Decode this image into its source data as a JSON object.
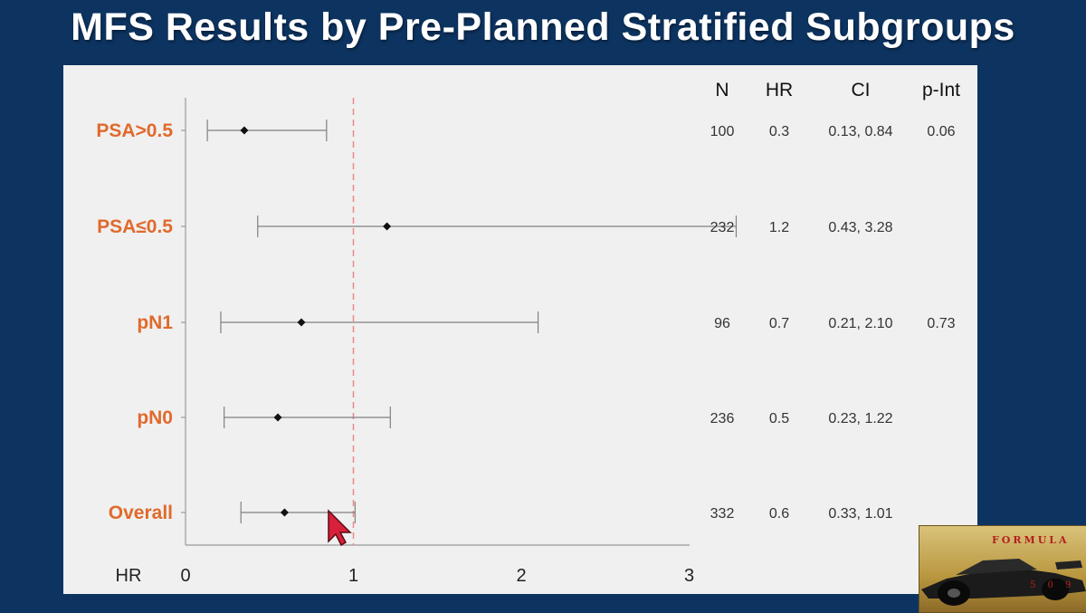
{
  "slide": {
    "title": "MFS Results by Pre-Planned Stratified Subgroups"
  },
  "table": {
    "headers": [
      "N",
      "HR",
      "CI",
      "p-Int"
    ]
  },
  "chart_data": {
    "type": "forest",
    "xlabel": "HR",
    "xlim": [
      0,
      3.45
    ],
    "xticks": [
      0,
      1,
      2,
      3
    ],
    "reference_line": 1,
    "rows": [
      {
        "label": "PSA>0.5",
        "n": "100",
        "hr": 0.3,
        "hr_text": "0.3",
        "ci_low": 0.13,
        "ci_high": 0.84,
        "ci_text": "0.13, 0.84",
        "p_int": "0.06",
        "point": 0.35
      },
      {
        "label": "PSA≤0.5",
        "n": "232",
        "hr": 1.2,
        "hr_text": "1.2",
        "ci_low": 0.43,
        "ci_high": 3.28,
        "ci_text": "0.43, 3.28",
        "p_int": "",
        "point": 1.2
      },
      {
        "label": "pN1",
        "n": "96",
        "hr": 0.7,
        "hr_text": "0.7",
        "ci_low": 0.21,
        "ci_high": 2.1,
        "ci_text": "0.21, 2.10",
        "p_int": "0.73",
        "point": 0.69
      },
      {
        "label": "pN0",
        "n": "236",
        "hr": 0.5,
        "hr_text": "0.5",
        "ci_low": 0.23,
        "ci_high": 1.22,
        "ci_text": "0.23, 1.22",
        "p_int": "",
        "point": 0.55
      },
      {
        "label": "Overall",
        "n": "332",
        "hr": 0.6,
        "hr_text": "0.6",
        "ci_low": 0.33,
        "ci_high": 1.01,
        "ci_text": "0.33, 1.01",
        "p_int": "",
        "point": 0.59
      }
    ],
    "colors": {
      "label": "#e06a2c",
      "reference": "#e88a8a",
      "whisker": "#808080",
      "point": "#111111"
    }
  },
  "logo": {
    "text": "FORMULA",
    "number": "5 0 9"
  },
  "cursor": {
    "icon": "pointer-arrow-icon",
    "color": "#d8203a"
  }
}
